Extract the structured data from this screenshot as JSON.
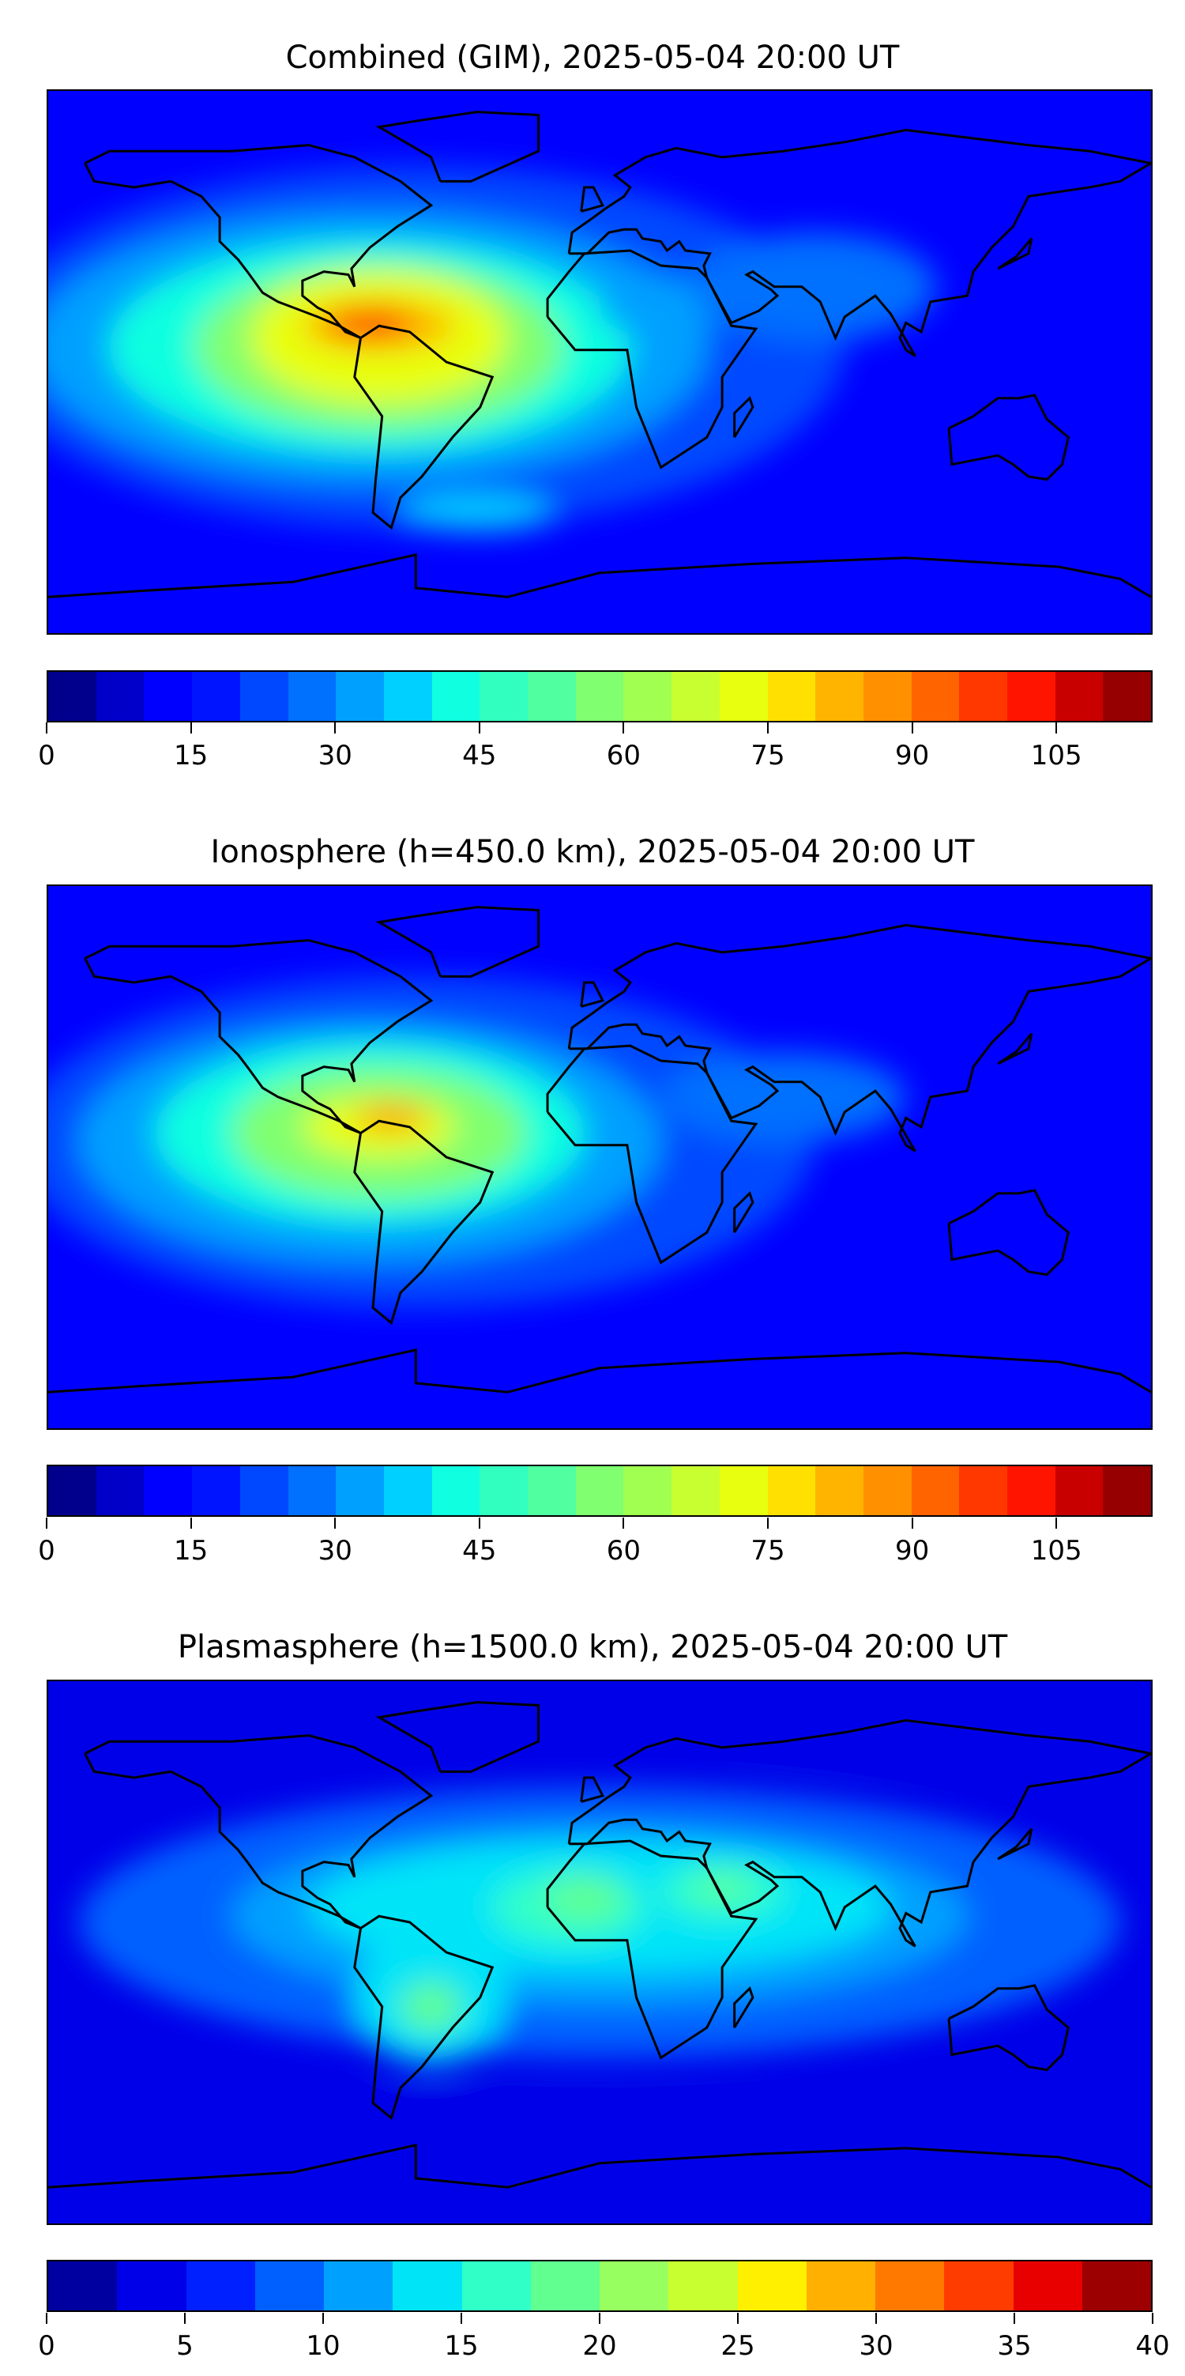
{
  "chart_data": [
    {
      "type": "heatmap",
      "title": "Combined (GIM), 2025-05-04 20:00 UT",
      "projection": "equirectangular, global",
      "colorbar": {
        "min": 0,
        "max": 115,
        "step": 5,
        "ticks": [
          0,
          15,
          30,
          45,
          60,
          75,
          90,
          105
        ],
        "colors": [
          "#00008c",
          "#0000c8",
          "#0000ff",
          "#0014ff",
          "#0048ff",
          "#0070ff",
          "#00a0ff",
          "#00d0ff",
          "#10ffe0",
          "#30ffc0",
          "#50ffa0",
          "#80ff70",
          "#a0ff50",
          "#c8ff30",
          "#e8ff10",
          "#ffe000",
          "#ffb400",
          "#ff9000",
          "#ff6400",
          "#ff3800",
          "#ff1400",
          "#c80000",
          "#960000"
        ]
      },
      "features": "peak ~95-105 near lon -70, lat 12 (northern South America / Caribbean); high values 60-80 across Americas; low values 5-20 over Asia, Pacific and high latitudes"
    },
    {
      "type": "heatmap",
      "title": "Ionosphere  (h=450.0 km), 2025-05-04 20:00 UT",
      "projection": "equirectangular, global",
      "colorbar": {
        "min": 0,
        "max": 115,
        "step": 5,
        "ticks": [
          0,
          15,
          30,
          45,
          60,
          75,
          90,
          105
        ],
        "colors": [
          "#00008c",
          "#0000c8",
          "#0000ff",
          "#0014ff",
          "#0048ff",
          "#0070ff",
          "#00a0ff",
          "#00d0ff",
          "#10ffe0",
          "#30ffc0",
          "#50ffa0",
          "#80ff70",
          "#a0ff50",
          "#c8ff30",
          "#e8ff10",
          "#ffe000",
          "#ffb400",
          "#ff9000",
          "#ff6400",
          "#ff3800",
          "#ff1400",
          "#c80000",
          "#960000"
        ]
      },
      "features": "peak ~80-90 near lon -65, lat 12; 40-70 over Americas; 5-20 elsewhere"
    },
    {
      "type": "heatmap",
      "title": "Plasmasphere (h=1500.0 km), 2025-05-04 20:00 UT",
      "projection": "equirectangular, global",
      "colorbar": {
        "min": 0,
        "max": 40,
        "step": 2.5,
        "ticks": [
          0,
          5,
          10,
          15,
          20,
          25,
          30,
          35,
          40
        ],
        "colors": [
          "#0000a0",
          "#0000e8",
          "#0020ff",
          "#0060ff",
          "#00a0ff",
          "#00e4f8",
          "#30ffc8",
          "#60ff90",
          "#98ff60",
          "#c8ff30",
          "#fff000",
          "#ffb000",
          "#ff7800",
          "#ff3c00",
          "#e80000",
          "#9c0000"
        ]
      },
      "features": "band of 12-20 across low latitudes from Americas to SE Asia; local maxima ~20-23 near West Africa (lon -10, lat 18), Arabia (lon 40, lat 20) and Brazil (lon -50, lat -15); 2-7 at high latitudes"
    }
  ]
}
